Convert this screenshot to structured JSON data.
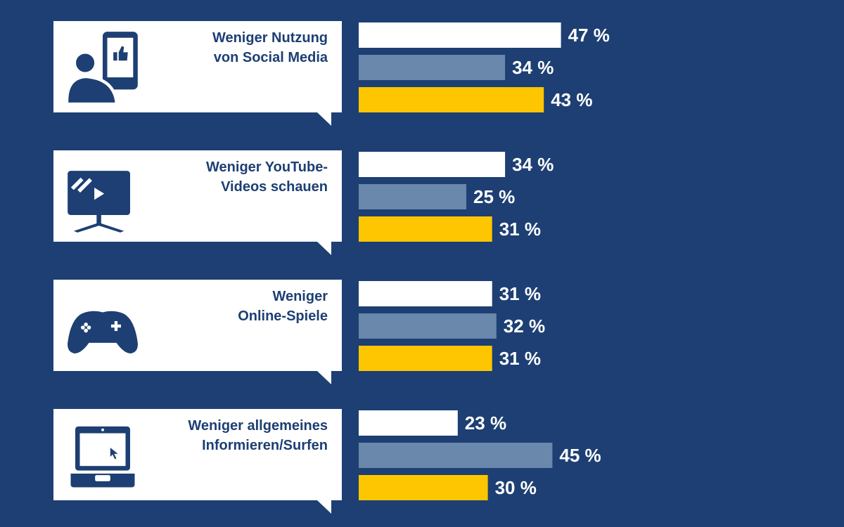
{
  "colors": {
    "background": "#1d3f73",
    "bubble": "#ffffff",
    "bubble_text": "#1d3f73",
    "series": [
      "#ffffff",
      "#6a87ac",
      "#fdc600"
    ],
    "value_label": "#ffffff"
  },
  "groups": [
    {
      "icon": "social-media-person-icon",
      "label_lines": [
        "Weniger Nutzung",
        "von Social Media"
      ]
    },
    {
      "icon": "tv-screen-icon",
      "label_lines": [
        "Weniger YouTube-",
        "Videos schauen"
      ]
    },
    {
      "icon": "gamepad-icon",
      "label_lines": [
        "Weniger",
        "Online-Spiele"
      ]
    },
    {
      "icon": "laptop-cursor-icon",
      "label_lines": [
        "Weniger allgemeines",
        "Informieren/Surfen"
      ]
    }
  ],
  "chart_data": {
    "type": "bar",
    "orientation": "horizontal",
    "categories": [
      "Weniger Nutzung von Social Media",
      "Weniger YouTube-Videos schauen",
      "Weniger Online-Spiele",
      "Weniger allgemeines Informieren/Surfen"
    ],
    "series": [
      {
        "values": [
          47,
          34,
          31,
          23
        ]
      },
      {
        "values": [
          34,
          25,
          32,
          45
        ]
      },
      {
        "values": [
          43,
          31,
          31,
          30
        ]
      }
    ],
    "value_labels": [
      [
        "47 %",
        "34 %",
        "43 %"
      ],
      [
        "34 %",
        "25 %",
        "31 %"
      ],
      [
        "31 %",
        "32 %",
        "31 %"
      ],
      [
        "23 %",
        "45 %",
        "30 %"
      ]
    ],
    "unit": "%",
    "legend": "none",
    "grid": false
  }
}
